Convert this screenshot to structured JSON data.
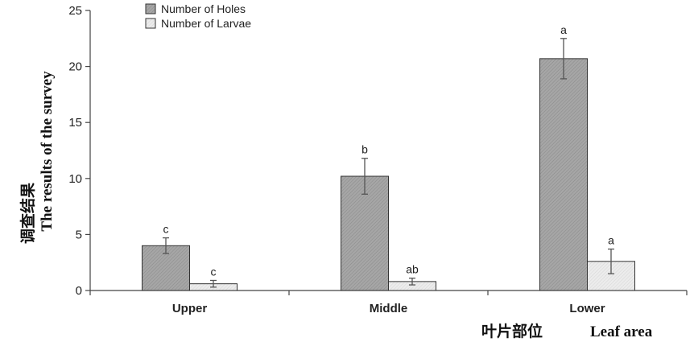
{
  "chart_data": {
    "type": "bar",
    "categories": [
      "Upper",
      "Middle",
      "Lower"
    ],
    "series": [
      {
        "name": "Number of Holes",
        "values": [
          4.0,
          10.2,
          20.7
        ],
        "errors": [
          0.7,
          1.6,
          1.8
        ],
        "sig": [
          "c",
          "b",
          "a"
        ],
        "fill": "#a6a6a6"
      },
      {
        "name": "Number of Larvae",
        "values": [
          0.6,
          0.8,
          2.6
        ],
        "errors": [
          0.3,
          0.3,
          1.1
        ],
        "sig": [
          "c",
          "ab",
          "a"
        ],
        "fill": "#e8e8e8"
      }
    ],
    "ylabel_cn": "调查结果",
    "ylabel": "The results of the survey",
    "xlabel_cn": "叶片部位",
    "xlabel": "Leaf area",
    "ylim": [
      0,
      25
    ],
    "yticks": [
      0,
      5,
      10,
      15,
      20,
      25
    ],
    "grid": false,
    "legend_position": "top-left"
  }
}
